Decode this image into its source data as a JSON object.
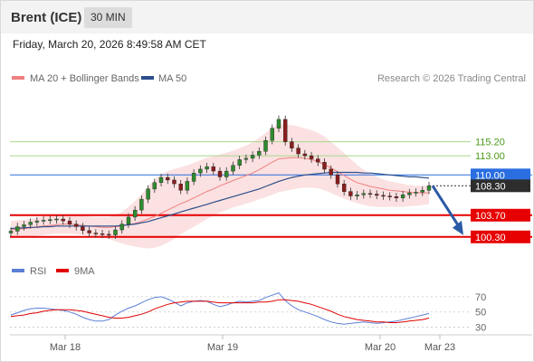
{
  "header": {
    "title": "Brent (ICE)",
    "timeframe": "30 MIN",
    "timestamp": "Friday, March 20, 2026 8:49:58 AM CET"
  },
  "legend": {
    "ma20": {
      "label": "MA 20 + Bollinger Bands",
      "color": "#f08080"
    },
    "ma50": {
      "label": "MA 50",
      "color": "#2c4f8c"
    },
    "copyright": "Research © 2026 Trading Central"
  },
  "rsi_legend": {
    "rsi": {
      "label": "RSI",
      "color": "#5b7fd6"
    },
    "ma9": {
      "label": "9MA",
      "color": "#e00000"
    }
  },
  "chart_data": [
    {
      "type": "line",
      "title": "",
      "x_ticks": [
        "Mar 18",
        "Mar 19",
        "Mar 20",
        "Mar 23"
      ],
      "ylim": [
        96.3,
        123.5
      ],
      "grid": false,
      "legend_position": "top-left",
      "levels": [
        {
          "value": 115.2,
          "label": "115.20",
          "role": "resistance",
          "color": "#a8d88a",
          "label_color": "#4a9a1a"
        },
        {
          "value": 113.0,
          "label": "113.00",
          "role": "resistance",
          "color": "#a8d88a",
          "label_color": "#4a9a1a"
        },
        {
          "value": 110.0,
          "label": "110.00",
          "role": "pivot",
          "color": "#2a6ee0",
          "label_color": "#ffffff"
        },
        {
          "value": 108.3,
          "label": "108.30",
          "role": "last",
          "color": "#2d2d2d",
          "label_color": "#ffffff"
        },
        {
          "value": 103.7,
          "label": "103.70",
          "role": "support",
          "color": "#e60000",
          "label_color": "#ffffff"
        },
        {
          "value": 100.3,
          "label": "100.30",
          "role": "support",
          "color": "#e60000",
          "label_color": "#ffffff"
        }
      ],
      "series": [
        {
          "name": "Price",
          "values": [
            101.2,
            101.9,
            102.2,
            102.6,
            102.8,
            102.9,
            103.0,
            103.1,
            102.8,
            102.3,
            101.9,
            101.3,
            100.9,
            100.8,
            100.7,
            100.6,
            101.4,
            102.3,
            103.4,
            104.5,
            106.2,
            107.8,
            108.8,
            109.6,
            109.2,
            108.6,
            107.6,
            109.0,
            110.3,
            110.9,
            111.3,
            110.6,
            109.7,
            110.6,
            111.5,
            112.4,
            112.6,
            113.1,
            113.7,
            115.4,
            117.3,
            118.7,
            115.2,
            114.2,
            113.3,
            113.0,
            112.5,
            112.0,
            110.9,
            110.0,
            108.6,
            107.4,
            106.7,
            106.9,
            107.1,
            107.0,
            106.8,
            106.7,
            106.6,
            106.4,
            106.9,
            107.2,
            107.3,
            107.6,
            108.3
          ]
        },
        {
          "name": "MA 20",
          "values": [
            101.4,
            101.5,
            101.6,
            101.7,
            101.9,
            102.0,
            102.1,
            102.2,
            102.3,
            102.3,
            102.2,
            102.1,
            102.0,
            101.9,
            101.8,
            101.8,
            101.9,
            102.0,
            102.2,
            102.4,
            102.7,
            103.1,
            103.5,
            104.0,
            104.5,
            105.0,
            105.5,
            105.9,
            106.4,
            106.9,
            107.4,
            107.8,
            108.3,
            108.7,
            109.1,
            109.5,
            109.9,
            110.3,
            110.8,
            111.4,
            112.0,
            112.5,
            112.6,
            112.7,
            112.7,
            112.6,
            112.4,
            112.1,
            111.6,
            111.1,
            110.5,
            109.9,
            109.3,
            108.8,
            108.5,
            108.2,
            108.0,
            107.8,
            107.6,
            107.5,
            107.4,
            107.3,
            107.2,
            107.2,
            107.2
          ]
        },
        {
          "name": "MA 50",
          "values": [
            101.6,
            101.7,
            101.7,
            101.8,
            101.8,
            101.9,
            101.9,
            102.0,
            102.0,
            102.0,
            102.0,
            102.0,
            102.0,
            102.0,
            102.0,
            102.0,
            102.0,
            102.1,
            102.2,
            102.3,
            102.5,
            102.7,
            103.0,
            103.3,
            103.6,
            103.9,
            104.2,
            104.5,
            104.8,
            105.1,
            105.4,
            105.7,
            106.0,
            106.3,
            106.6,
            106.9,
            107.2,
            107.5,
            107.8,
            108.2,
            108.6,
            109.0,
            109.3,
            109.6,
            109.8,
            110.0,
            110.1,
            110.2,
            110.3,
            110.4,
            110.4,
            110.4,
            110.4,
            110.4,
            110.3,
            110.3,
            110.2,
            110.1,
            110.0,
            109.9,
            109.8,
            109.7,
            109.7,
            109.6,
            109.5
          ]
        },
        {
          "name": "Bollinger Upper",
          "values": [
            102.8,
            102.9,
            103.0,
            103.1,
            103.3,
            103.5,
            103.6,
            103.7,
            103.8,
            103.8,
            103.7,
            103.6,
            103.5,
            103.4,
            103.4,
            103.4,
            103.7,
            104.2,
            105.0,
            105.9,
            107.0,
            108.2,
            109.3,
            110.1,
            110.6,
            110.9,
            111.2,
            111.5,
            111.9,
            112.3,
            112.7,
            112.9,
            113.2,
            113.5,
            113.8,
            114.2,
            114.6,
            115.1,
            115.8,
            116.6,
            117.4,
            118.0,
            117.9,
            117.8,
            117.6,
            117.3,
            117.0,
            116.6,
            116.0,
            115.2,
            114.3,
            113.4,
            112.5,
            111.6,
            110.8,
            110.2,
            109.7,
            109.3,
            109.0,
            108.8,
            108.6,
            108.4,
            108.3,
            108.3,
            108.3
          ]
        },
        {
          "name": "Bollinger Lower",
          "values": [
            100.1,
            100.2,
            100.3,
            100.4,
            100.5,
            100.6,
            100.7,
            100.8,
            100.8,
            100.8,
            100.7,
            100.6,
            100.5,
            100.4,
            100.2,
            100.0,
            99.6,
            99.3,
            99.0,
            98.8,
            98.6,
            98.5,
            98.6,
            98.9,
            99.4,
            100.0,
            100.7,
            101.3,
            101.9,
            102.5,
            103.1,
            103.6,
            104.1,
            104.5,
            104.9,
            105.2,
            105.5,
            105.8,
            106.2,
            106.5,
            106.9,
            107.3,
            107.5,
            107.7,
            107.9,
            108.0,
            108.0,
            107.9,
            107.6,
            107.2,
            106.7,
            106.3,
            105.9,
            105.6,
            105.3,
            105.1,
            105.0,
            105.0,
            105.0,
            105.0,
            105.0,
            105.1,
            105.2,
            105.3,
            105.4
          ]
        }
      ]
    },
    {
      "type": "line",
      "title": "",
      "ylim": [
        20,
        90
      ],
      "y_ticks": [
        70,
        50,
        30
      ],
      "grid": true,
      "series": [
        {
          "name": "RSI",
          "values": [
            46,
            49,
            52,
            54,
            55,
            55,
            54,
            53,
            52,
            50,
            47,
            43,
            40,
            38,
            38,
            40,
            46,
            51,
            55,
            58,
            62,
            66,
            69,
            70,
            67,
            63,
            58,
            62,
            64,
            65,
            64,
            60,
            57,
            59,
            62,
            64,
            63,
            64,
            65,
            69,
            72,
            75,
            65,
            58,
            53,
            50,
            47,
            44,
            40,
            37,
            35,
            34,
            35,
            36,
            37,
            36,
            35,
            36,
            37,
            38,
            40,
            42,
            44,
            46,
            48
          ]
        },
        {
          "name": "9MA",
          "values": [
            44,
            45,
            46,
            48,
            49,
            51,
            52,
            53,
            53,
            53,
            52,
            51,
            49,
            47,
            45,
            43,
            42,
            42,
            43,
            45,
            47,
            50,
            54,
            57,
            60,
            62,
            63,
            64,
            64,
            64,
            64,
            63,
            62,
            62,
            62,
            62,
            62,
            62,
            63,
            63,
            64,
            66,
            66,
            65,
            64,
            62,
            60,
            57,
            54,
            51,
            47,
            44,
            42,
            40,
            39,
            38,
            37,
            37,
            36,
            36,
            37,
            38,
            39,
            40,
            42
          ]
        }
      ]
    }
  ]
}
